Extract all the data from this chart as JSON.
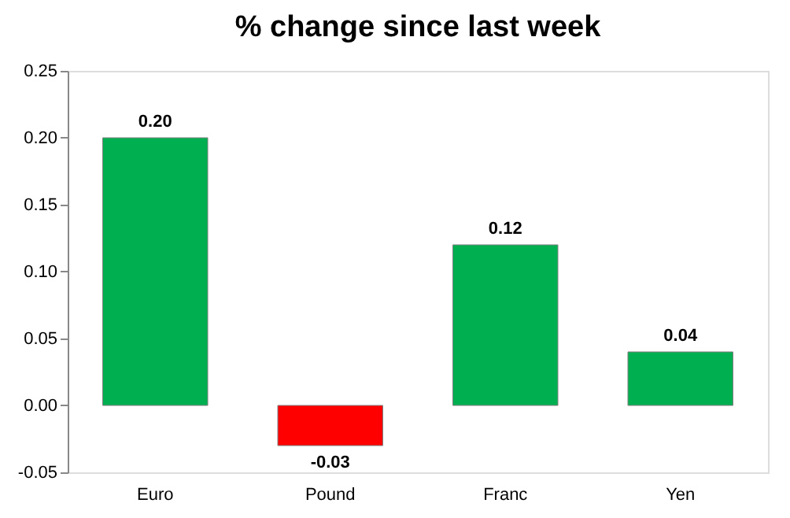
{
  "chart_data": {
    "type": "bar",
    "title": "% change since last week",
    "categories": [
      "Euro",
      "Pound",
      "Franc",
      "Yen"
    ],
    "values": [
      0.2,
      -0.03,
      0.12,
      0.04
    ],
    "colors": [
      "#00b050",
      "#ff0000",
      "#00b050",
      "#00b050"
    ],
    "value_labels": [
      "0.20",
      "-0.03",
      "0.12",
      "0.04"
    ],
    "ylim": [
      -0.05,
      0.25
    ],
    "yticks": [
      {
        "value": -0.05,
        "label": "-0.05"
      },
      {
        "value": 0,
        "label": "0.00"
      },
      {
        "value": 0.05,
        "label": "0.05"
      },
      {
        "value": 0.1,
        "label": "0.10"
      },
      {
        "value": 0.15,
        "label": "0.15"
      },
      {
        "value": 0.2,
        "label": "0.20"
      },
      {
        "value": 0.25,
        "label": "0.25"
      }
    ],
    "grid": false
  }
}
